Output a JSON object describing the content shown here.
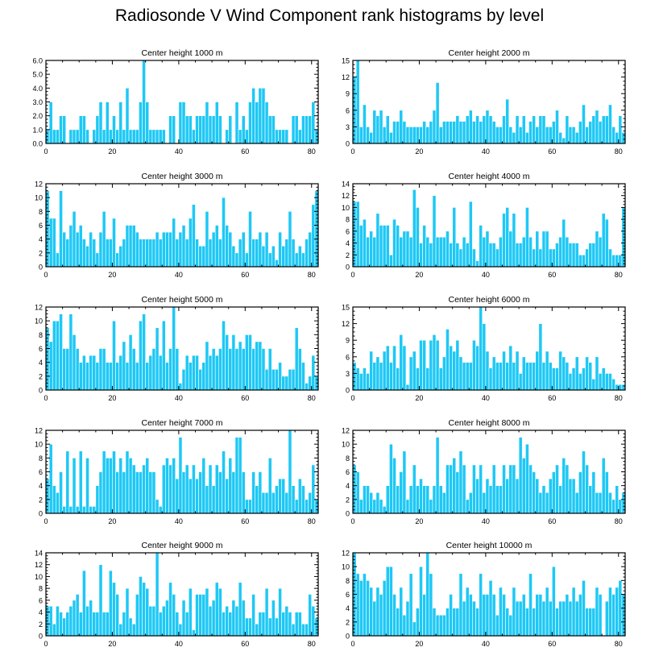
{
  "title": "Radiosonde V Wind Component rank histograms by level",
  "style": {
    "bar_fill": "#1ec8f5",
    "bar_stroke": "#ffffff",
    "axis": "#000000"
  },
  "chart_data": [
    {
      "type": "bar",
      "title": "Center height 1000 m",
      "xlim": [
        0,
        82
      ],
      "ylim": [
        0,
        6
      ],
      "yticks": [
        0,
        1,
        2,
        3,
        4,
        5,
        6
      ],
      "ytick_labels": [
        "0.0",
        "1.0",
        "2.0",
        "3.0",
        "4.0",
        "5.0",
        "6.0"
      ],
      "xticks": [
        0,
        20,
        40,
        60,
        80
      ],
      "values": [
        1,
        3,
        1,
        1,
        2,
        2,
        0,
        1,
        1,
        1,
        2,
        2,
        1,
        0,
        1,
        2,
        3,
        1,
        3,
        1,
        2,
        1,
        3,
        1,
        4,
        1,
        1,
        1,
        3,
        6,
        3,
        1,
        1,
        1,
        1,
        1,
        0,
        2,
        2,
        0,
        3,
        3,
        2,
        2,
        1,
        2,
        2,
        2,
        3,
        2,
        2,
        3,
        2,
        0,
        1,
        2,
        0,
        3,
        1,
        2,
        1,
        3,
        4,
        3,
        4,
        4,
        3,
        2,
        2,
        1,
        1,
        1,
        1,
        0,
        2,
        2,
        1,
        2,
        2,
        2,
        3,
        1
      ]
    },
    {
      "type": "bar",
      "title": "Center height 2000 m",
      "xlim": [
        0,
        82
      ],
      "ylim": [
        0,
        15
      ],
      "yticks": [
        0,
        3,
        6,
        9,
        12,
        15
      ],
      "xticks": [
        0,
        20,
        40,
        60,
        80
      ],
      "values": [
        12,
        15,
        3,
        7,
        3,
        2,
        6,
        5,
        6,
        3,
        5,
        2,
        4,
        4,
        6,
        4,
        3,
        3,
        3,
        3,
        3,
        4,
        3,
        4,
        6,
        11,
        3,
        4,
        4,
        4,
        4,
        5,
        4,
        4,
        5,
        6,
        4,
        5,
        4,
        5,
        6,
        5,
        4,
        3,
        3,
        5,
        8,
        3,
        2,
        5,
        3,
        5,
        2,
        4,
        5,
        3,
        5,
        5,
        3,
        3,
        4,
        6,
        2,
        1,
        5,
        3,
        3,
        2,
        4,
        7,
        3,
        4,
        5,
        6,
        4,
        5,
        5,
        7,
        3,
        2,
        5,
        2
      ]
    },
    {
      "type": "bar",
      "title": "Center height 3000 m",
      "xlim": [
        0,
        82
      ],
      "ylim": [
        0,
        12
      ],
      "yticks": [
        0,
        2,
        4,
        6,
        8,
        10,
        12
      ],
      "xticks": [
        0,
        20,
        40,
        60,
        80
      ],
      "values": [
        11,
        7,
        7,
        2,
        11,
        5,
        4,
        6,
        8,
        5,
        6,
        4,
        3,
        5,
        4,
        2,
        5,
        8,
        4,
        4,
        7,
        2,
        3,
        4,
        6,
        6,
        6,
        5,
        4,
        4,
        4,
        4,
        4,
        5,
        4,
        5,
        5,
        5,
        7,
        4,
        5,
        6,
        4,
        7,
        9,
        4,
        3,
        3,
        8,
        4,
        5,
        6,
        4,
        10,
        6,
        5,
        3,
        2,
        4,
        5,
        2,
        8,
        4,
        4,
        5,
        3,
        5,
        2,
        3,
        1,
        5,
        3,
        4,
        8,
        4,
        2,
        3,
        2,
        4,
        5,
        9,
        11
      ]
    },
    {
      "type": "bar",
      "title": "Center height 4000 m",
      "xlim": [
        0,
        82
      ],
      "ylim": [
        0,
        14
      ],
      "yticks": [
        0,
        2,
        4,
        6,
        8,
        10,
        12,
        14
      ],
      "xticks": [
        0,
        20,
        40,
        60,
        80
      ],
      "values": [
        11,
        11,
        7,
        8,
        5,
        6,
        5,
        9,
        7,
        7,
        7,
        2,
        8,
        7,
        5,
        6,
        6,
        5,
        13,
        10,
        4,
        7,
        5,
        4,
        12,
        5,
        5,
        5,
        6,
        4,
        10,
        4,
        3,
        5,
        4,
        11,
        3,
        1,
        7,
        5,
        6,
        4,
        4,
        3,
        5,
        9,
        10,
        6,
        9,
        4,
        4,
        5,
        10,
        5,
        3,
        6,
        3,
        6,
        6,
        3,
        3,
        4,
        5,
        8,
        5,
        4,
        4,
        4,
        2,
        2,
        3,
        4,
        4,
        6,
        5,
        9,
        8,
        3,
        2,
        2,
        2,
        10
      ]
    },
    {
      "type": "bar",
      "title": "Center height 5000 m",
      "xlim": [
        0,
        82
      ],
      "ylim": [
        0,
        12
      ],
      "yticks": [
        0,
        2,
        4,
        6,
        8,
        10,
        12
      ],
      "xticks": [
        0,
        20,
        40,
        60,
        80
      ],
      "values": [
        9,
        7,
        10,
        10,
        11,
        6,
        6,
        11,
        8,
        6,
        4,
        5,
        4,
        5,
        5,
        4,
        6,
        6,
        4,
        4,
        10,
        4,
        5,
        7,
        4,
        8,
        6,
        4,
        10,
        11,
        4,
        5,
        6,
        9,
        5,
        10,
        4,
        6,
        12,
        6,
        1,
        3,
        5,
        4,
        5,
        5,
        3,
        4,
        7,
        5,
        6,
        5,
        6,
        10,
        8,
        6,
        8,
        6,
        7,
        6,
        8,
        8,
        6,
        7,
        7,
        6,
        3,
        6,
        3,
        3,
        4,
        2,
        2,
        3,
        3,
        9,
        6,
        4,
        1,
        2,
        5,
        2
      ]
    },
    {
      "type": "bar",
      "title": "Center height 6000 m",
      "xlim": [
        0,
        82
      ],
      "ylim": [
        0,
        15
      ],
      "yticks": [
        0,
        3,
        6,
        9,
        12,
        15
      ],
      "xticks": [
        0,
        20,
        40,
        60,
        80
      ],
      "values": [
        5,
        4,
        3,
        4,
        3,
        7,
        5,
        6,
        5,
        7,
        8,
        5,
        8,
        4,
        10,
        8,
        1,
        6,
        7,
        4,
        9,
        9,
        4,
        9,
        10,
        9,
        4,
        6,
        11,
        8,
        7,
        9,
        6,
        5,
        5,
        5,
        9,
        8,
        15,
        12,
        7,
        4,
        6,
        5,
        5,
        7,
        5,
        8,
        5,
        7,
        3,
        6,
        5,
        5,
        5,
        7,
        12,
        5,
        7,
        5,
        4,
        4,
        7,
        6,
        5,
        3,
        4,
        6,
        3,
        4,
        6,
        5,
        2,
        6,
        3,
        4,
        3,
        3,
        2,
        1,
        1,
        1
      ]
    },
    {
      "type": "bar",
      "title": "Center height 7000 m",
      "xlim": [
        0,
        82
      ],
      "ylim": [
        0,
        12
      ],
      "yticks": [
        0,
        2,
        4,
        6,
        8,
        10,
        12
      ],
      "xticks": [
        0,
        20,
        40,
        60,
        80
      ],
      "values": [
        5,
        10,
        4,
        3,
        6,
        1,
        9,
        1,
        8,
        1,
        9,
        1,
        8,
        1,
        1,
        4,
        6,
        9,
        8,
        8,
        9,
        6,
        8,
        6,
        9,
        8,
        7,
        6,
        6,
        7,
        8,
        6,
        6,
        2,
        1,
        7,
        8,
        7,
        8,
        5,
        11,
        6,
        7,
        5,
        7,
        5,
        6,
        8,
        4,
        7,
        4,
        7,
        6,
        9,
        5,
        8,
        6,
        11,
        11,
        6,
        2,
        2,
        6,
        4,
        6,
        3,
        3,
        8,
        3,
        4,
        5,
        5,
        3,
        12,
        4,
        2,
        5,
        4,
        2,
        3,
        7,
        2
      ]
    },
    {
      "type": "bar",
      "title": "Center height 8000 m",
      "xlim": [
        0,
        82
      ],
      "ylim": [
        0,
        12
      ],
      "yticks": [
        0,
        2,
        4,
        6,
        8,
        10,
        12
      ],
      "xticks": [
        0,
        20,
        40,
        60,
        80
      ],
      "values": [
        7,
        6,
        2,
        4,
        4,
        3,
        2,
        3,
        2,
        1,
        4,
        10,
        8,
        4,
        6,
        9,
        2,
        4,
        7,
        4,
        5,
        4,
        4,
        2,
        4,
        11,
        4,
        3,
        7,
        7,
        8,
        6,
        9,
        7,
        2,
        3,
        7,
        5,
        7,
        3,
        5,
        4,
        7,
        4,
        4,
        7,
        5,
        7,
        7,
        5,
        11,
        8,
        10,
        7,
        6,
        5,
        3,
        4,
        3,
        5,
        6,
        7,
        4,
        8,
        7,
        5,
        5,
        3,
        6,
        9,
        7,
        4,
        6,
        3,
        3,
        8,
        6,
        3,
        2,
        4,
        2,
        3
      ]
    },
    {
      "type": "bar",
      "title": "Center height 9000 m",
      "xlim": [
        0,
        82
      ],
      "ylim": [
        0,
        14
      ],
      "yticks": [
        0,
        2,
        4,
        6,
        8,
        10,
        12,
        14
      ],
      "xticks": [
        0,
        20,
        40,
        60,
        80
      ],
      "values": [
        5,
        5,
        2,
        5,
        4,
        3,
        4,
        5,
        6,
        7,
        4,
        11,
        5,
        6,
        4,
        4,
        12,
        4,
        4,
        11,
        9,
        7,
        2,
        4,
        8,
        3,
        2,
        7,
        10,
        9,
        8,
        5,
        5,
        14,
        4,
        5,
        6,
        9,
        7,
        4,
        2,
        6,
        4,
        8,
        1,
        7,
        7,
        7,
        8,
        5,
        6,
        9,
        8,
        4,
        5,
        4,
        6,
        5,
        9,
        6,
        3,
        3,
        7,
        2,
        4,
        4,
        8,
        3,
        6,
        3,
        8,
        4,
        5,
        4,
        2,
        4,
        4,
        2,
        2,
        7,
        5,
        3
      ]
    },
    {
      "type": "bar",
      "title": "Center height 10000 m",
      "xlim": [
        0,
        82
      ],
      "ylim": [
        0,
        12
      ],
      "yticks": [
        0,
        2,
        4,
        6,
        8,
        10,
        12
      ],
      "xticks": [
        0,
        20,
        40,
        60,
        80
      ],
      "values": [
        12,
        9,
        8,
        9,
        8,
        7,
        5,
        7,
        6,
        8,
        10,
        10,
        6,
        4,
        7,
        3,
        5,
        9,
        2,
        4,
        10,
        6,
        12,
        9,
        4,
        3,
        3,
        3,
        4,
        6,
        4,
        4,
        9,
        5,
        7,
        6,
        5,
        4,
        9,
        6,
        6,
        8,
        6,
        3,
        7,
        6,
        4,
        3,
        7,
        5,
        5,
        6,
        4,
        9,
        4,
        6,
        6,
        5,
        7,
        5,
        10,
        4,
        5,
        5,
        6,
        5,
        7,
        5,
        6,
        8,
        4,
        4,
        4,
        7,
        6,
        0,
        5,
        7,
        6,
        7,
        8,
        6
      ]
    }
  ]
}
